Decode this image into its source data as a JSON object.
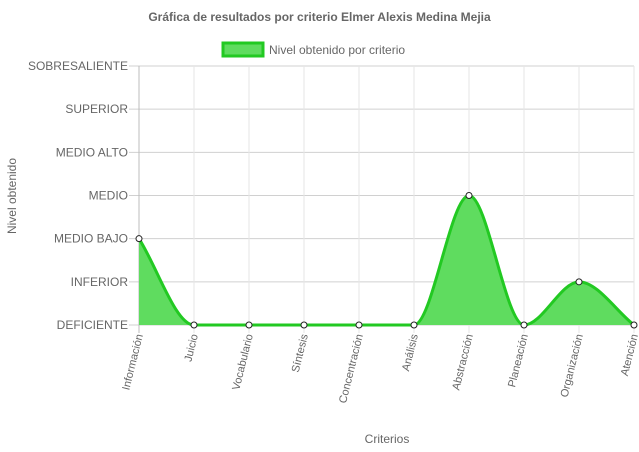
{
  "chart_data": {
    "type": "area",
    "title": "Gráfica de resultados por criterio Elmer Alexis Medina Mejia",
    "xlabel": "Criterios",
    "ylabel": "Nivel obtenido",
    "y_levels": [
      "DEFICIENTE",
      "INFERIOR",
      "MEDIO BAJO",
      "MEDIO",
      "MEDIO ALTO",
      "SUPERIOR",
      "SOBRESALIENTE"
    ],
    "ylim": [
      0,
      6
    ],
    "categories": [
      "Información",
      "Juicio",
      "Vocabulario",
      "Síntesis",
      "Concentración",
      "Análisis",
      "Abstracción",
      "Planeación",
      "Organización",
      "Atención"
    ],
    "series": [
      {
        "name": "Nivel obtenido por criterio",
        "values": [
          2,
          0,
          0,
          0,
          0,
          0,
          3,
          0,
          1,
          0
        ],
        "color": "#22c922",
        "fill": "#5fdc5f"
      }
    ],
    "grid": true,
    "legend_position": "top"
  }
}
